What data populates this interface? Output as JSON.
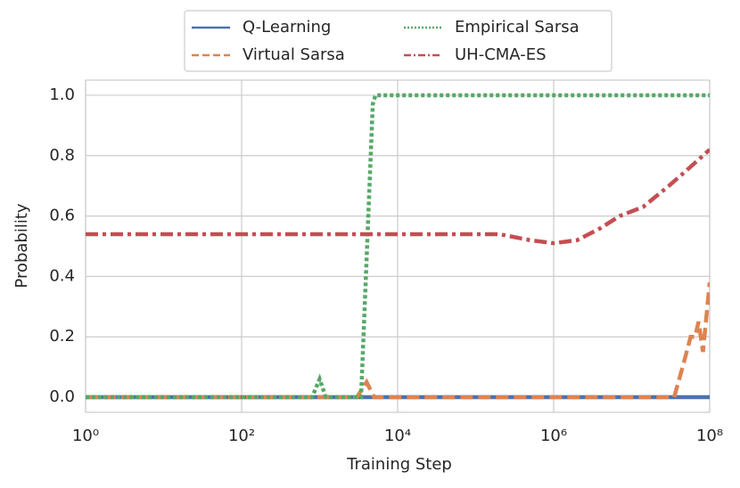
{
  "chart_data": {
    "type": "line",
    "xlabel": "Training Step",
    "ylabel": "Probability",
    "xscale": "log",
    "xlim": [
      1,
      100000000
    ],
    "ylim": [
      -0.05,
      1.05
    ],
    "xticks": [
      {
        "value": 1,
        "label": "10⁰"
      },
      {
        "value": 100,
        "label": "10²"
      },
      {
        "value": 10000,
        "label": "10⁴"
      },
      {
        "value": 1000000,
        "label": "10⁶"
      },
      {
        "value": 100000000,
        "label": "10⁸"
      }
    ],
    "yticks": [
      {
        "value": 0,
        "label": "0.0"
      },
      0.2,
      0.4,
      0.6,
      0.8,
      {
        "value": 1,
        "label": "1.0"
      }
    ],
    "grid": true,
    "legend_loc": "upper center",
    "legend_ncol": 2,
    "series": [
      {
        "name": "Q-Learning",
        "color": "#4c72b0",
        "linestyle": "solid",
        "x": [
          1,
          100000000
        ],
        "values": [
          0,
          0
        ]
      },
      {
        "name": "Virtual Sarsa",
        "color": "#dd8452",
        "linestyle": "dashed",
        "x": [
          1,
          3000,
          4000,
          5000,
          35000000,
          45000000,
          57000000,
          65000000,
          72000000,
          82000000,
          100000000
        ],
        "values": [
          0,
          0,
          0.05,
          0,
          0,
          0.1,
          0.2,
          0.2,
          0.25,
          0.15,
          0.38
        ]
      },
      {
        "name": "Empirical Sarsa",
        "color": "#55a868",
        "linestyle": "dotted",
        "x": [
          1,
          800,
          1000,
          1200,
          3400,
          4800,
          5200,
          100000000
        ],
        "values": [
          0,
          0,
          0.06,
          0,
          0,
          0.97,
          1,
          1
        ]
      },
      {
        "name": "UH-CMA-ES",
        "color": "#c44e52",
        "linestyle": "dashdot",
        "x": [
          1,
          200000,
          500000,
          1000000,
          2000000,
          4000000,
          7000000,
          14000000,
          30000000,
          50000000,
          100000000
        ],
        "values": [
          0.54,
          0.54,
          0.52,
          0.51,
          0.52,
          0.56,
          0.6,
          0.63,
          0.7,
          0.75,
          0.82
        ]
      }
    ]
  }
}
